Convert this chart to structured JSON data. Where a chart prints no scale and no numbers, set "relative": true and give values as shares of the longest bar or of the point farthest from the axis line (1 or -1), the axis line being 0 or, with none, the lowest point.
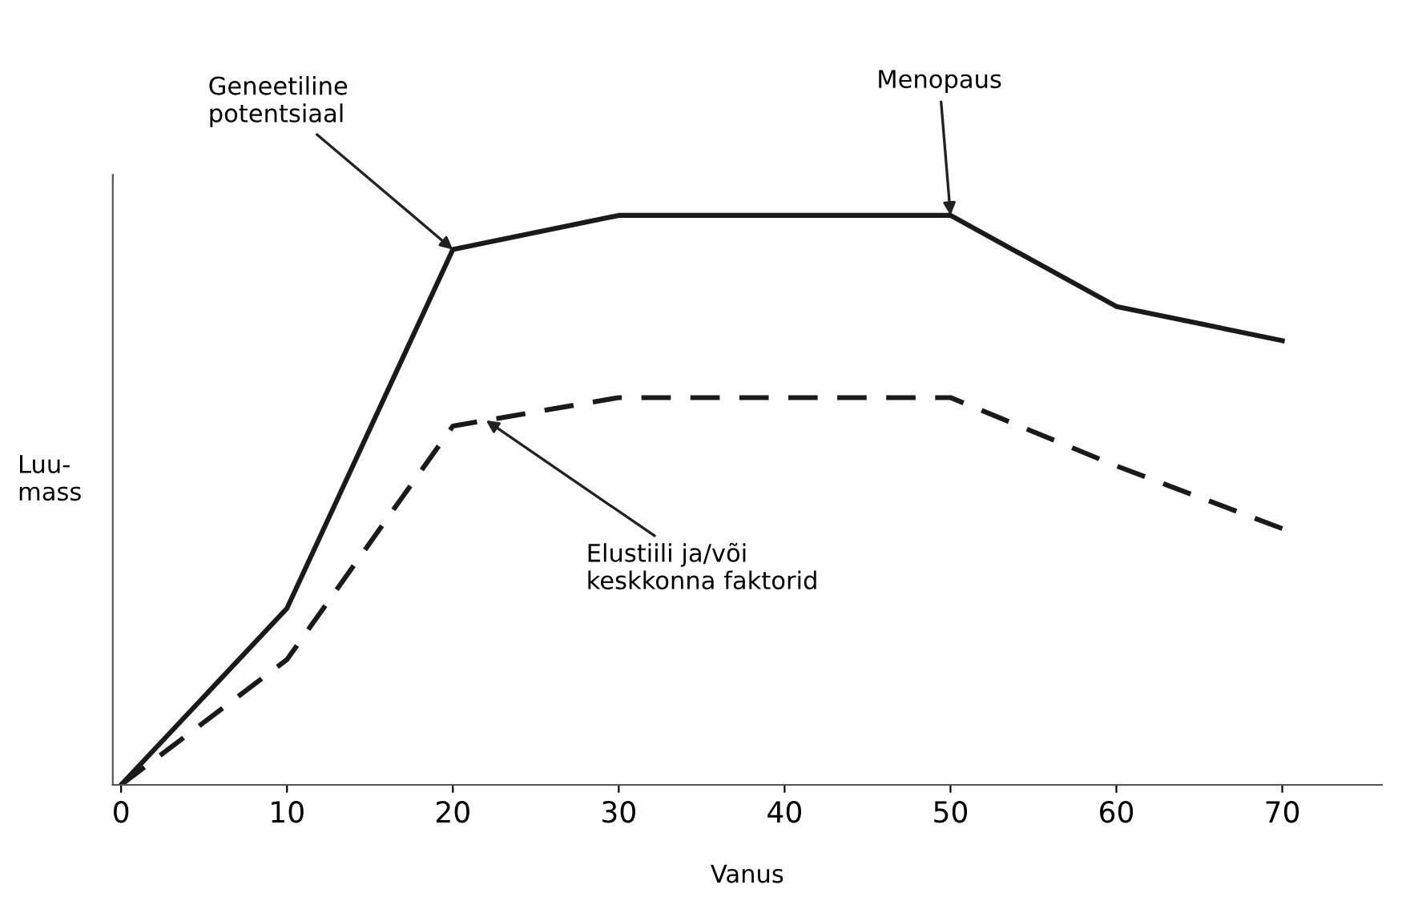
{
  "chart_data": {
    "type": "line",
    "relative": true,
    "xlabel": "Vanus",
    "ylabel": "Luu-\nmass",
    "x": [
      0,
      10,
      20,
      30,
      50,
      60,
      70
    ],
    "xlim": [
      -0.5,
      76
    ],
    "xticks": [
      0,
      10,
      20,
      30,
      40,
      50,
      60,
      70
    ],
    "series": [
      {
        "color": "#1a1a1a",
        "line_style": "solid",
        "values": [
          0,
          0.31,
          0.94,
          1,
          1,
          0.84,
          0.78
        ]
      },
      {
        "color": "#1a1a1a",
        "line_style": "dashed",
        "values": [
          0,
          0.22,
          0.63,
          0.68,
          0.68,
          0.56,
          0.45
        ]
      }
    ],
    "annotations": [
      {
        "text": "Geneetiline\npotentsiaal",
        "x": 20,
        "y": 0.94
      },
      {
        "text": "Menopaus",
        "x": 50,
        "y": 1
      },
      {
        "text": "Elustiili ja/või\nkeskkonna faktorid",
        "x": 22,
        "y": 0.64
      }
    ],
    "grid": false,
    "legend": false,
    "marker": "none"
  }
}
